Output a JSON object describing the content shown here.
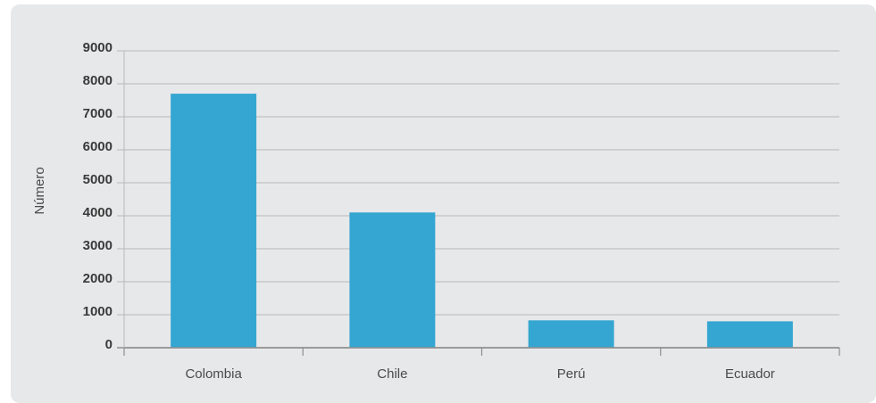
{
  "chart_data": {
    "type": "bar",
    "categories": [
      "Colombia",
      "Chile",
      "Perú",
      "Ecuador"
    ],
    "values": [
      7700,
      4100,
      830,
      800
    ],
    "ylabel": "Número",
    "ylim": [
      0,
      9000
    ],
    "yticks": [
      0,
      1000,
      2000,
      3000,
      4000,
      5000,
      6000,
      7000,
      8000,
      9000
    ],
    "grid": true,
    "bar_color": "#35a6d1"
  }
}
